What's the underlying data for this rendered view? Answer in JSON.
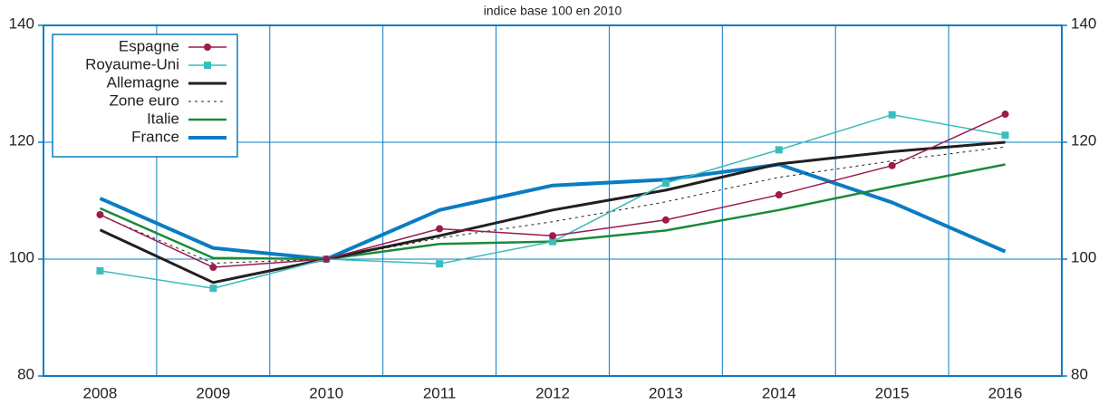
{
  "chart_data": {
    "type": "line",
    "title": "indice base 100 en 2010",
    "categories": [
      "2008",
      "2009",
      "2010",
      "2011",
      "2012",
      "2013",
      "2014",
      "2015",
      "2016"
    ],
    "ylim": [
      80,
      140
    ],
    "yticks": [
      80,
      100,
      120,
      140
    ],
    "grid": true,
    "legend": "upper left",
    "frame_color": "#0a7cc1",
    "series": [
      {
        "name": "Espagne",
        "color": "#9b1b4a",
        "marker": "circle",
        "linewidth": 1.5,
        "values": [
          107.6,
          98.6,
          100,
          105.2,
          104,
          106.7,
          111,
          116,
          124.8
        ]
      },
      {
        "name": "Royaume-Uni",
        "color": "#3cbcbc",
        "marker": "square",
        "linewidth": 1.5,
        "values": [
          98,
          95,
          100,
          99.2,
          103,
          113,
          118.7,
          124.7,
          121.2
        ]
      },
      {
        "name": "Allemagne",
        "color": "#231f20",
        "linewidth": 3,
        "values": [
          105,
          96,
          100,
          104,
          108.4,
          111.8,
          116.3,
          118.4,
          120
        ]
      },
      {
        "name": "Zone euro",
        "color": "#231f20",
        "linewidth": 1,
        "style": "dashed",
        "values": [
          107.5,
          99.3,
          100,
          103.6,
          106.4,
          109.8,
          114,
          116.8,
          119.2
        ]
      },
      {
        "name": "Italie",
        "color": "#1a8a3a",
        "linewidth": 2.5,
        "values": [
          108.7,
          100.2,
          100,
          102.6,
          103,
          104.9,
          108.4,
          112.4,
          116.2
        ]
      },
      {
        "name": "France",
        "color": "#0a7cc1",
        "linewidth": 4,
        "values": [
          110.4,
          101.9,
          100,
          108.4,
          112.6,
          113.6,
          116.2,
          109.7,
          101.3
        ]
      }
    ]
  }
}
